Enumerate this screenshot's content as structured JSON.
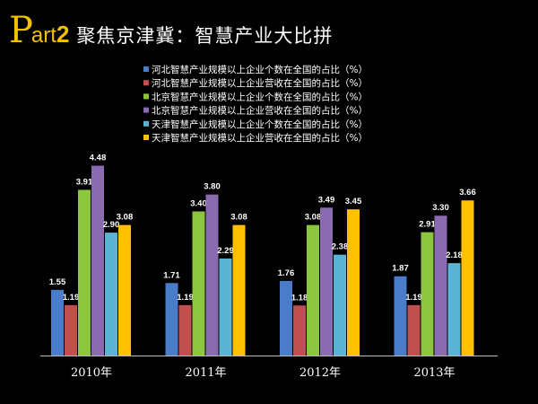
{
  "header": {
    "p_letter": "P",
    "art": "art",
    "number": "2",
    "title": "聚焦京津冀：智慧产业大比拼"
  },
  "chart_data": {
    "type": "bar",
    "title": "",
    "xlabel": "",
    "ylabel": "",
    "ylim": [
      0,
      5
    ],
    "grid": false,
    "legend_position": "top",
    "categories": [
      "2010年",
      "2011年",
      "2012年",
      "2013年"
    ],
    "series": [
      {
        "name": "河北智慧产业规模以上企业个数在全国的占比（%）",
        "color": "#4a7cc9",
        "values": [
          1.55,
          1.71,
          1.76,
          1.87
        ],
        "labels": [
          "1.55",
          "1.71",
          "1.76",
          "1.87"
        ]
      },
      {
        "name": "河北智慧产业规模以上企业营收在全国的占比（%）",
        "color": "#c0504d",
        "values": [
          1.19,
          1.19,
          1.18,
          1.19
        ],
        "labels": [
          "1.19",
          "1.19",
          "1.18",
          "1.19"
        ]
      },
      {
        "name": "北京智慧产业规模以上企业个数在全国的占比（%）",
        "color": "#8cc63f",
        "values": [
          3.91,
          3.4,
          3.08,
          2.91
        ],
        "labels": [
          "3.91",
          "3.40",
          "3.08",
          "2.91"
        ]
      },
      {
        "name": "北京智慧产业规模以上企业营收在全国的占比（%）",
        "color": "#8a6bb0",
        "values": [
          4.48,
          3.8,
          3.49,
          3.3
        ],
        "labels": [
          "4.48",
          "3.80",
          "3.49",
          "3.30"
        ]
      },
      {
        "name": "天津智慧产业规模以上企业个数在全国的占比（%）",
        "color": "#5bb4d6",
        "values": [
          2.9,
          2.29,
          2.38,
          2.18
        ],
        "labels": [
          "2.90",
          "2.29",
          "2.38",
          "2.18"
        ]
      },
      {
        "name": "天津智慧产业规模以上企业营收在全国的占比（%）",
        "color": "#ffc000",
        "values": [
          3.08,
          3.08,
          3.45,
          3.66
        ],
        "labels": [
          "3.08",
          "3.08",
          "3.45",
          "3.66"
        ]
      }
    ]
  }
}
